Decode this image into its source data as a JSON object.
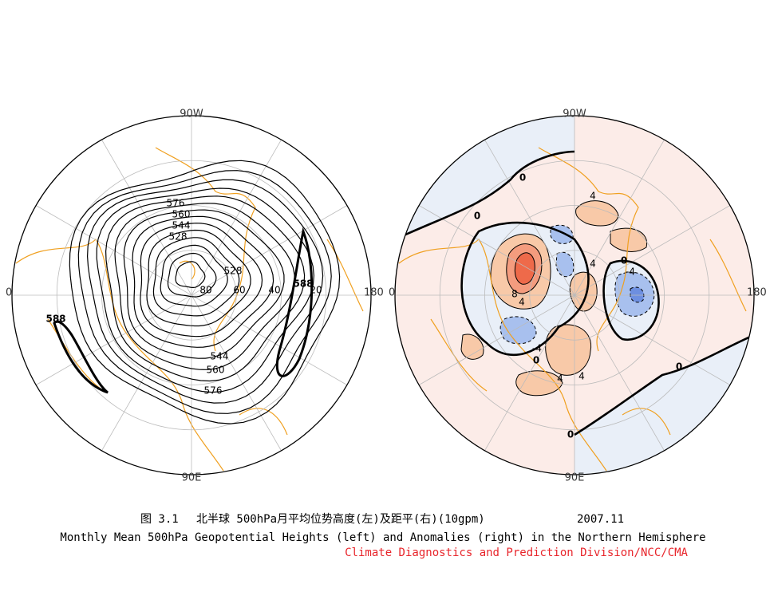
{
  "left_map": {
    "edge_labels": {
      "top": "90W",
      "bottom": "90E",
      "left": "0",
      "right": "180"
    },
    "latitude_labels": [
      80,
      60,
      40,
      20
    ],
    "contour_labels": [
      576,
      560,
      544,
      528,
      528,
      544,
      560,
      576,
      588,
      588
    ]
  },
  "right_map": {
    "edge_labels": {
      "top": "90W",
      "bottom": "90E",
      "left": "0",
      "right": "180"
    },
    "contour_labels": [
      0,
      0,
      4,
      0,
      4,
      -4,
      8,
      4,
      -4,
      0,
      4,
      4,
      0,
      0
    ]
  },
  "caption": {
    "figure_number": "图 3.1",
    "chinese_title": "北半球 500hPa月平均位势高度(左)及距平(右)(10gpm)",
    "date": "2007.11",
    "english_title": "Monthly Mean 500hPa Geopotential Heights (left) and Anomalies (right) in the Northern Hemisphere",
    "credit": "Climate Diagnostics and Prediction Division/NCC/CMA"
  }
}
